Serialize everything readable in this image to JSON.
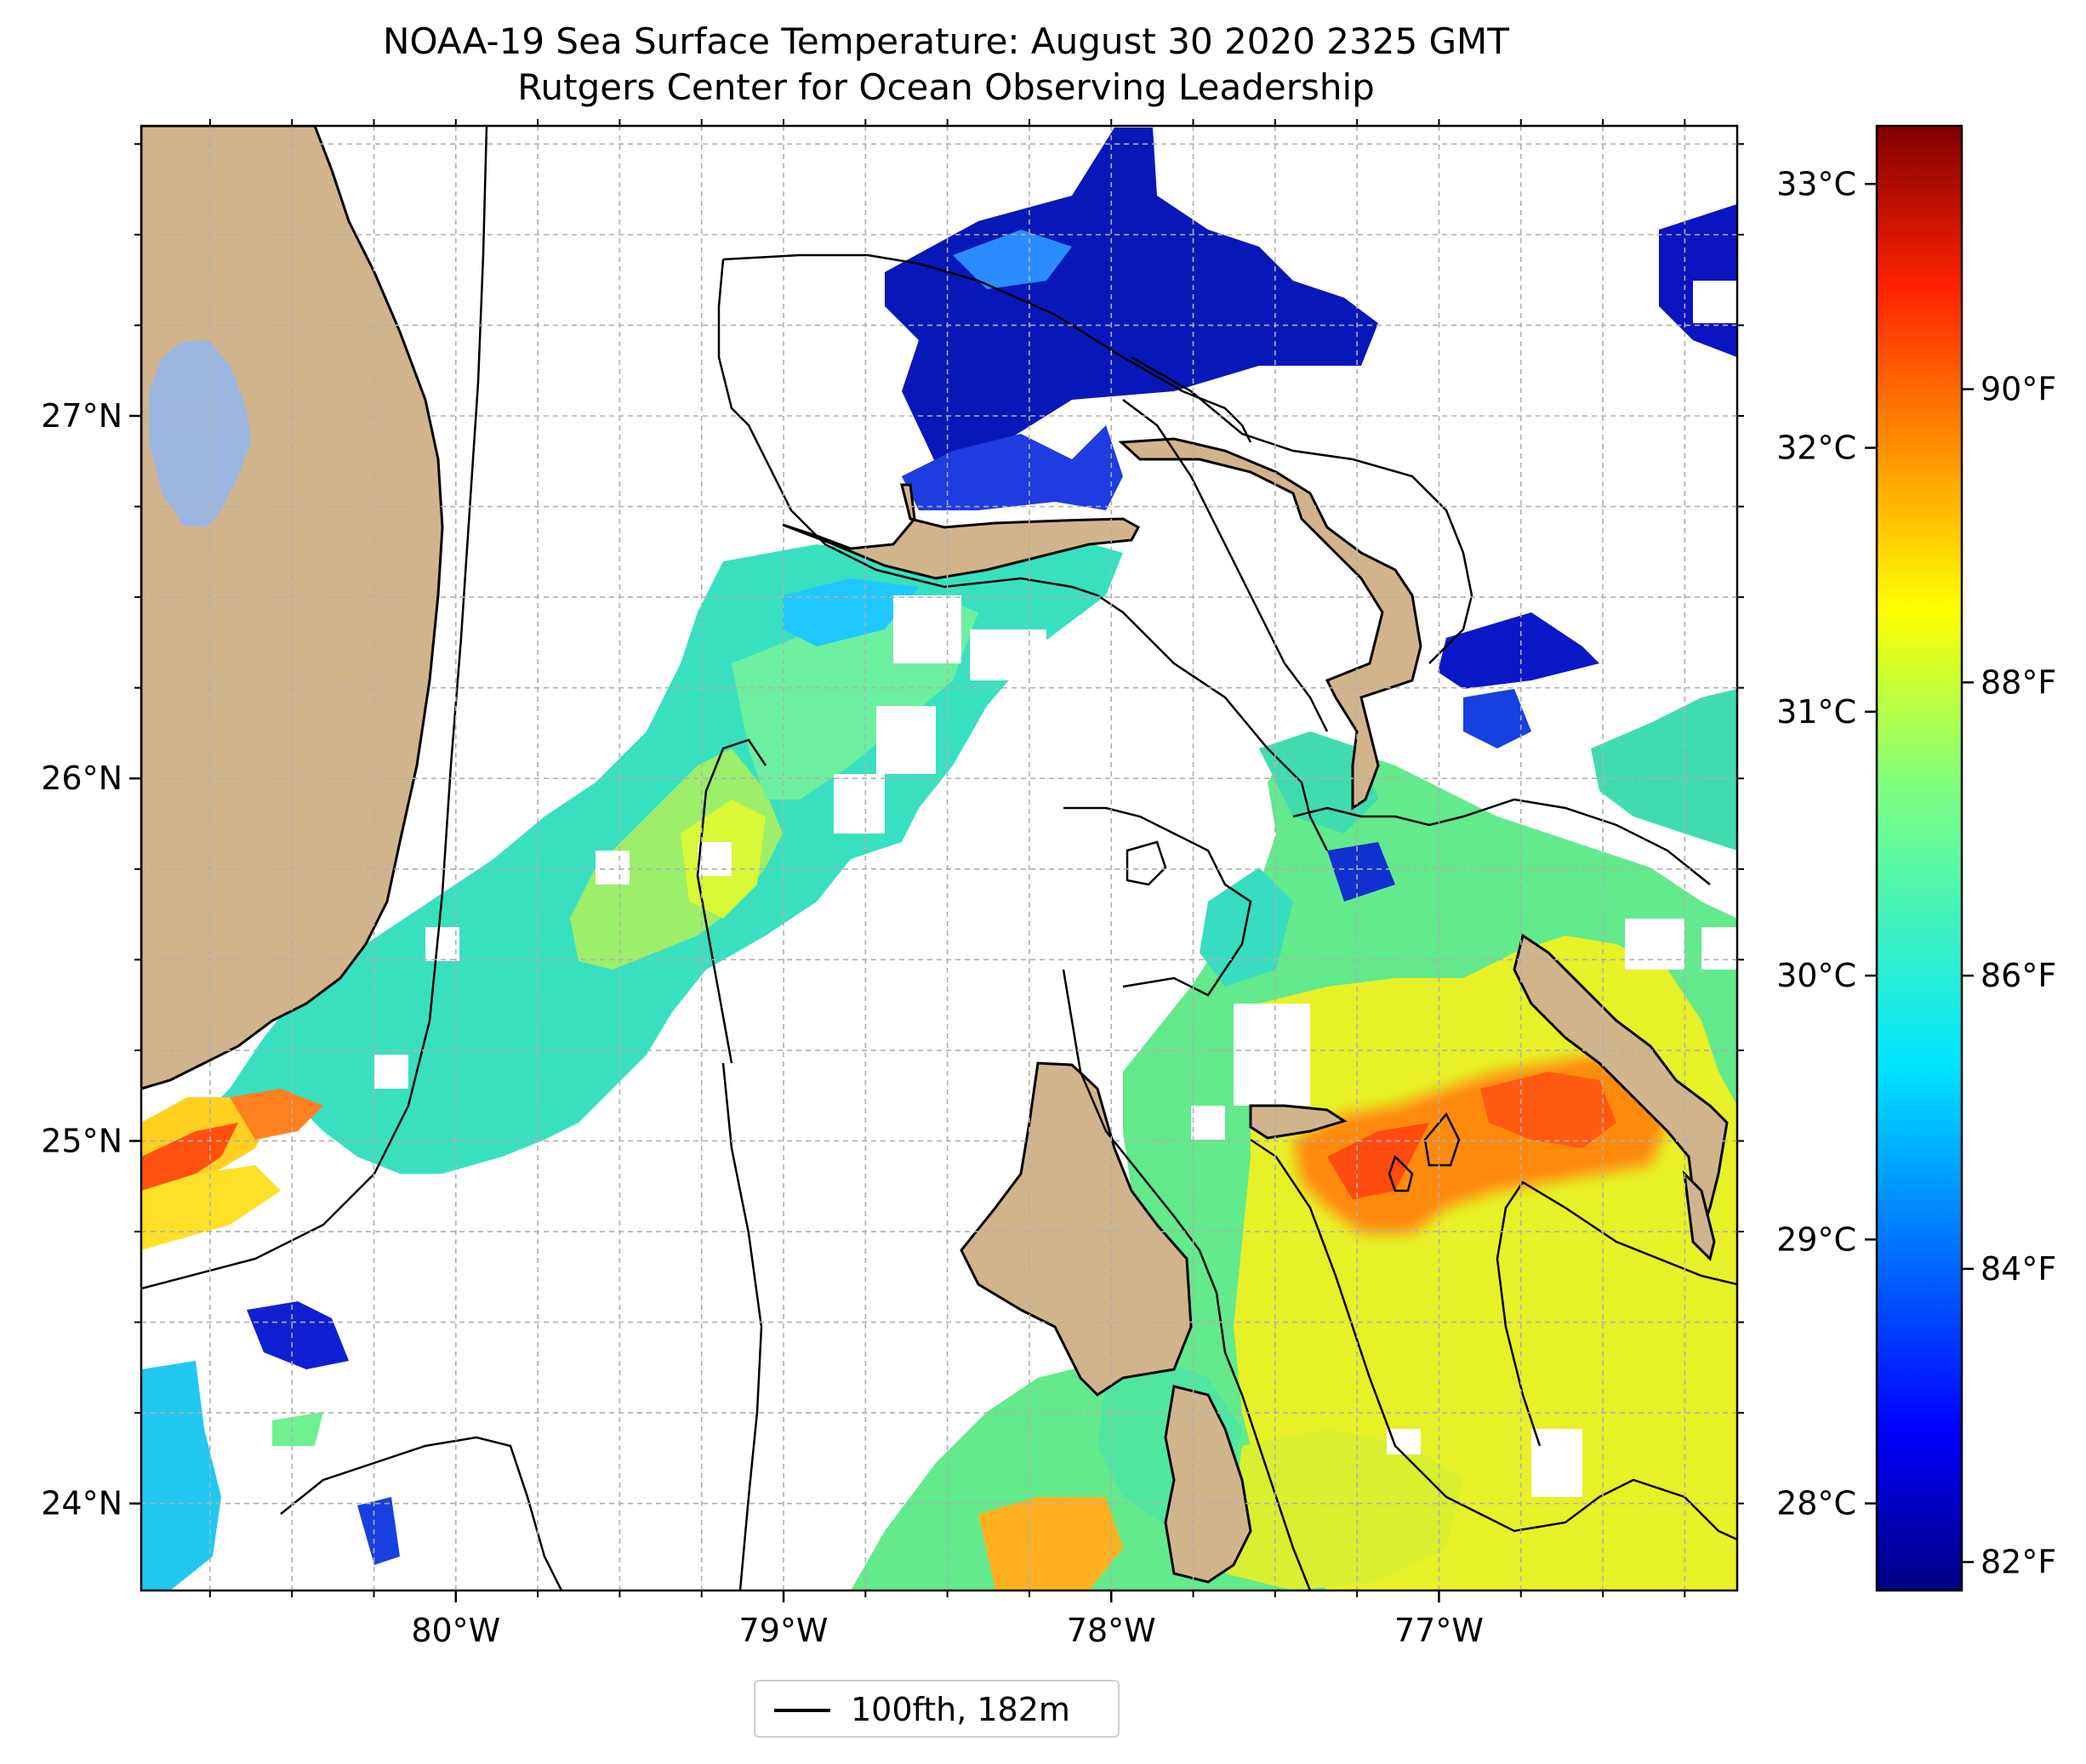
{
  "title": "NOAA-19 Sea Surface Temperature: August 30 2020 2325 GMT",
  "subtitle": "Rutgers Center for Ocean Observing Leadership",
  "map": {
    "lon_ticks": [
      {
        "value": -80,
        "label": "80°W"
      },
      {
        "value": -79,
        "label": "79°W"
      },
      {
        "value": -78,
        "label": "78°W"
      },
      {
        "value": -77,
        "label": "77°W"
      }
    ],
    "lat_ticks": [
      {
        "value": 27,
        "label": "27°N"
      },
      {
        "value": 26,
        "label": "26°N"
      },
      {
        "value": 25,
        "label": "25°N"
      },
      {
        "value": 24,
        "label": "24°N"
      }
    ],
    "lon_range": [
      -80.96,
      -76.09
    ],
    "lat_range": [
      23.76,
      27.8
    ],
    "grid": true,
    "land_color": "#d2b48c",
    "lake_color": "#9bb7e0",
    "colormap": "jet"
  },
  "colorbar": {
    "celsius_ticks": [
      {
        "value": 33,
        "label": "33°C"
      },
      {
        "value": 32,
        "label": "32°C"
      },
      {
        "value": 31,
        "label": "31°C"
      },
      {
        "value": 30,
        "label": "30°C"
      },
      {
        "value": 29,
        "label": "29°C"
      },
      {
        "value": 28,
        "label": "28°C"
      }
    ],
    "fahrenheit_ticks": [
      {
        "value": 90,
        "label": "90°F"
      },
      {
        "value": 88,
        "label": "88°F"
      },
      {
        "value": 86,
        "label": "86°F"
      },
      {
        "value": 84,
        "label": "84°F"
      },
      {
        "value": 82,
        "label": "82°F"
      }
    ],
    "range_c": [
      27.67,
      33.22
    ],
    "colors": [
      "#000080",
      "#0000ff",
      "#00ffff",
      "#80ff80",
      "#ffff00",
      "#ff0000",
      "#800000"
    ]
  },
  "legend": {
    "label": "100fth, 182m"
  }
}
